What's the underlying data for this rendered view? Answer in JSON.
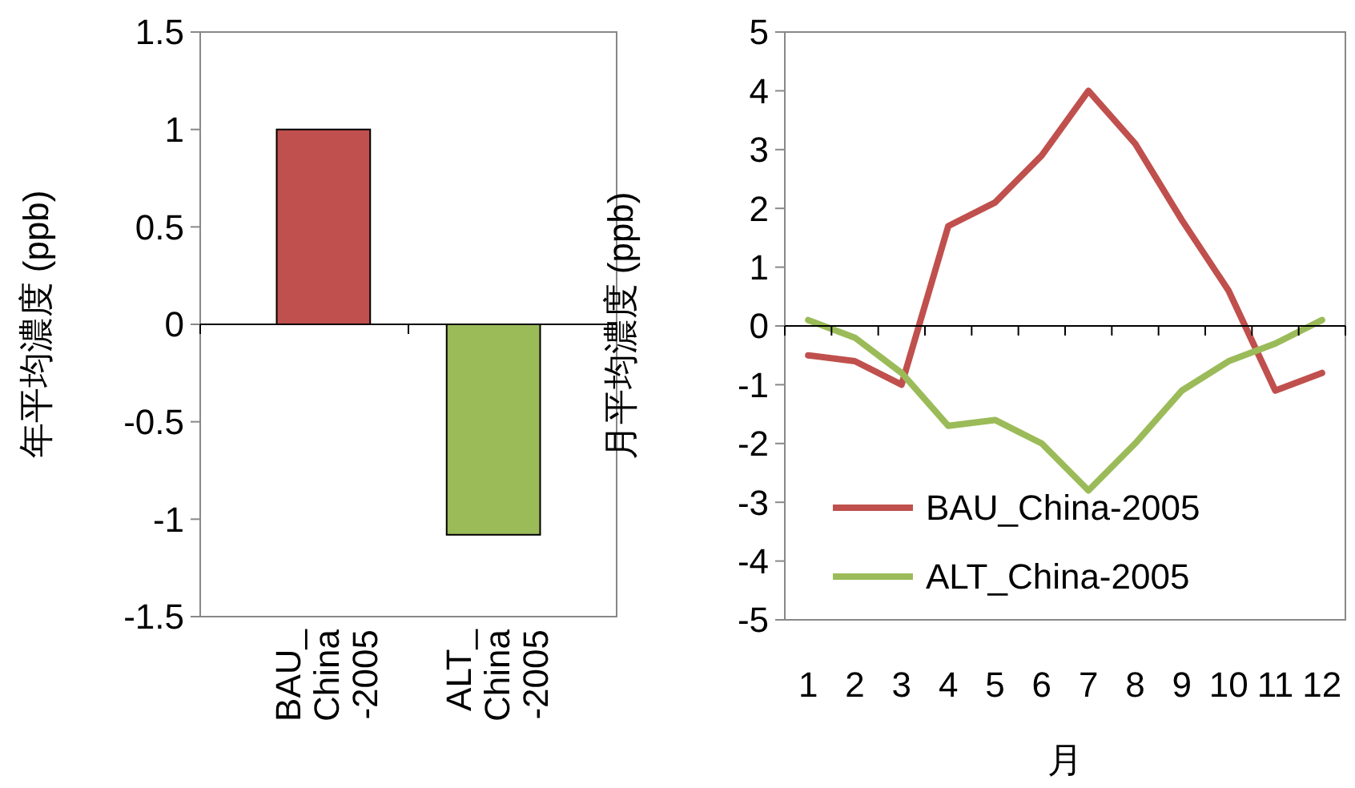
{
  "chart_data": [
    {
      "type": "bar",
      "ylabel": "年平均濃度 (ppb)",
      "categories": [
        "BAU_China-2005",
        "ALT_China-2005"
      ],
      "colors": [
        "#c0504d",
        "#9bbb59"
      ],
      "values": [
        1.0,
        -1.08
      ],
      "ylim": [
        -1.5,
        1.5
      ],
      "yticks": [
        -1.5,
        -1,
        -0.5,
        0,
        0.5,
        1,
        1.5
      ]
    },
    {
      "type": "line",
      "ylabel": "月平均濃度 (ppb)",
      "xlabel": "月",
      "categories": [
        "1",
        "2",
        "3",
        "4",
        "5",
        "6",
        "7",
        "8",
        "9",
        "10",
        "11",
        "12"
      ],
      "ylim": [
        -5,
        5
      ],
      "yticks": [
        -5,
        -4,
        -3,
        -2,
        -1,
        0,
        1,
        2,
        3,
        4,
        5
      ],
      "legend": "bottom",
      "series": [
        {
          "name": "BAU_China-2005",
          "color": "#c0504d",
          "values": [
            -0.5,
            -0.6,
            -1.0,
            1.7,
            2.1,
            2.9,
            4.0,
            3.1,
            1.8,
            0.6,
            -1.1,
            -0.8
          ]
        },
        {
          "name": "ALT_China-2005",
          "color": "#9bbb59",
          "values": [
            0.1,
            -0.2,
            -0.8,
            -1.7,
            -1.6,
            -2.0,
            -2.8,
            -2.0,
            -1.1,
            -0.6,
            -0.3,
            0.1
          ]
        }
      ]
    }
  ]
}
